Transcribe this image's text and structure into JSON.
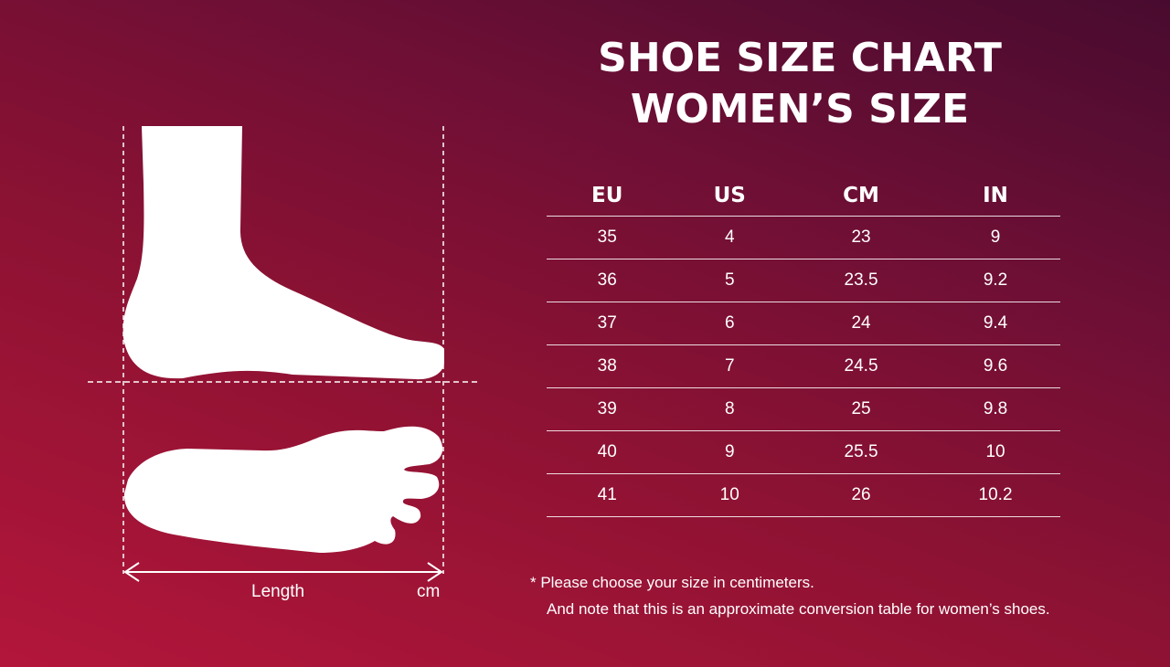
{
  "title": {
    "line1": "SHOE SIZE CHART",
    "line2": "WOMEN’S SIZE"
  },
  "table": {
    "headers": [
      "EU",
      "US",
      "CM",
      "IN"
    ],
    "rows": [
      [
        "35",
        "4",
        "23",
        "9"
      ],
      [
        "36",
        "5",
        "23.5",
        "9.2"
      ],
      [
        "37",
        "6",
        "24",
        "9.4"
      ],
      [
        "38",
        "7",
        "24.5",
        "9.6"
      ],
      [
        "39",
        "8",
        "25",
        "9.8"
      ],
      [
        "40",
        "9",
        "25.5",
        "10"
      ],
      [
        "41",
        "10",
        "26",
        "10.2"
      ]
    ]
  },
  "diagram": {
    "length_label": "Length",
    "unit_label": "cm"
  },
  "notes": {
    "line1": "*  Please choose your size in centimeters.",
    "line2": "And note that this is an approximate conversion table for women’s shoes."
  },
  "colors": {
    "bg_start": "#b3163a",
    "bg_end": "#480b2f",
    "foreground": "#ffffff"
  }
}
